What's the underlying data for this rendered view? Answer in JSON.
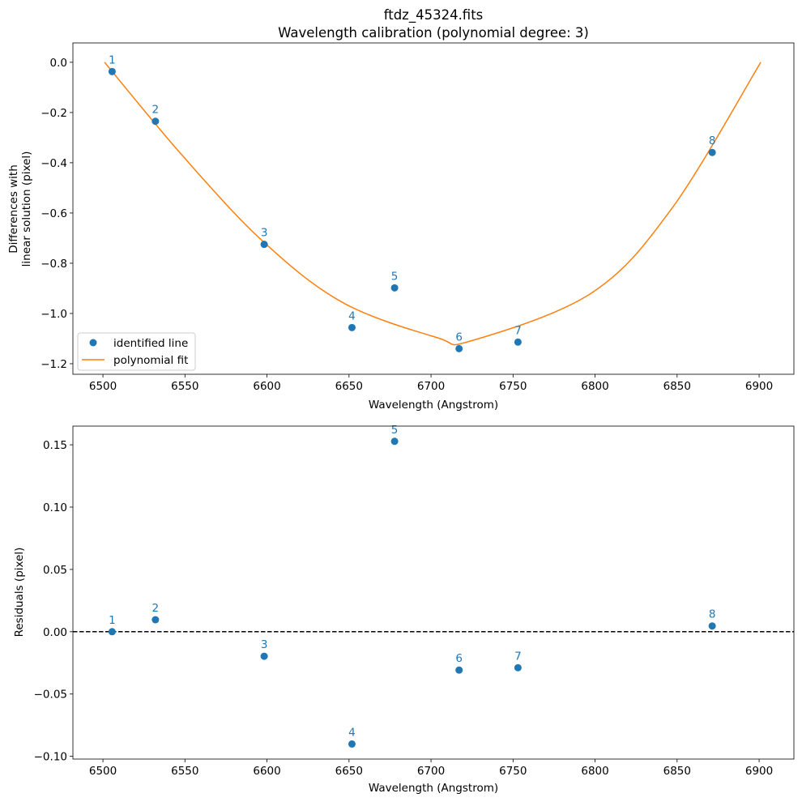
{
  "title": "ftdz_45324.fits",
  "subtitle": "Wavelength calibration (polynomial degree: 3)",
  "colors": {
    "points": "#1f77b4",
    "fit": "#ff7f0e",
    "zero_line": "#000000"
  },
  "chart_data": [
    {
      "type": "scatter",
      "xlabel": "Wavelength (Angstrom)",
      "ylabel_lines": [
        "Differences with",
        "linear solution (pixel)"
      ],
      "xlim": [
        6481.7,
        6921.2
      ],
      "ylim": [
        -1.242,
        0.077
      ],
      "xticks": [
        6500,
        6550,
        6600,
        6650,
        6700,
        6750,
        6800,
        6850,
        6900
      ],
      "yticks": [
        0.0,
        -0.2,
        -0.4,
        -0.6,
        -0.8,
        -1.0,
        -1.2
      ],
      "ytick_labels": [
        "0.0",
        "−0.2",
        "−0.4",
        "−0.6",
        "−0.8",
        "−1.0",
        "−1.2"
      ],
      "grid": false,
      "legend": {
        "placement": "lower-left",
        "entries": [
          "identified line",
          "polynomial fit"
        ]
      },
      "series": [
        {
          "name": "identified line",
          "kind": "scatter",
          "labels": [
            "1",
            "2",
            "3",
            "4",
            "5",
            "6",
            "7",
            "8"
          ],
          "x": [
            6505.6,
            6532.0,
            6598.3,
            6651.8,
            6677.8,
            6717.1,
            6753.0,
            6871.4
          ],
          "y": [
            -0.037,
            -0.235,
            -0.725,
            -1.056,
            -0.898,
            -1.14,
            -1.114,
            -0.359
          ]
        },
        {
          "name": "polynomial fit",
          "kind": "line",
          "x": [
            6501,
            6547.6,
            6596.9,
            6646,
            6703.7,
            6724.4,
            6798,
            6847,
            6901
          ],
          "y": [
            0.0,
            -0.365,
            -0.709,
            -0.956,
            -1.096,
            -1.109,
            -0.918,
            -0.58,
            0.0
          ]
        }
      ]
    },
    {
      "type": "scatter",
      "xlabel": "Wavelength (Angstrom)",
      "ylabel": "Residuals (pixel)",
      "xlim": [
        6481.7,
        6921.2
      ],
      "ylim": [
        -0.1022,
        0.165
      ],
      "xticks": [
        6500,
        6550,
        6600,
        6650,
        6700,
        6750,
        6800,
        6850,
        6900
      ],
      "yticks": [
        0.15,
        0.1,
        0.05,
        0.0,
        -0.05,
        -0.1
      ],
      "ytick_labels": [
        "0.15",
        "0.10",
        "0.05",
        "0.00",
        "−0.05",
        "−0.10"
      ],
      "grid": false,
      "reference_line_y": 0.0,
      "series": [
        {
          "kind": "scatter",
          "labels": [
            "1",
            "2",
            "3",
            "4",
            "5",
            "6",
            "7",
            "8"
          ],
          "x": [
            6505.6,
            6532.0,
            6598.3,
            6651.8,
            6677.8,
            6717.1,
            6753.0,
            6871.4
          ],
          "y": [
            0.0,
            0.0096,
            -0.0197,
            -0.0901,
            0.1528,
            -0.0308,
            -0.0289,
            0.0046
          ]
        }
      ]
    }
  ]
}
